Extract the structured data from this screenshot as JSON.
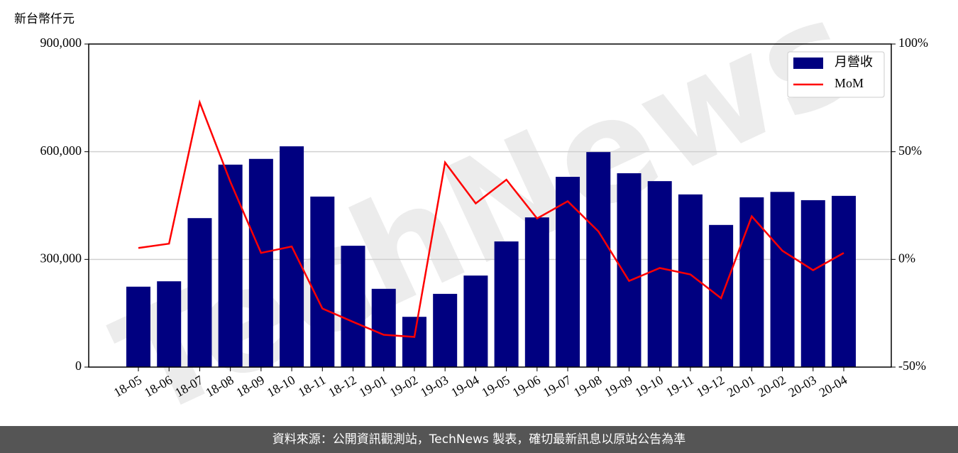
{
  "chart_data": {
    "type": "bar",
    "y_label": "新台幣仟元",
    "categories": [
      "18-05",
      "18-06",
      "18-07",
      "18-08",
      "18-09",
      "18-10",
      "18-11",
      "18-12",
      "19-01",
      "19-02",
      "19-03",
      "19-04",
      "19-05",
      "19-06",
      "19-07",
      "19-08",
      "19-09",
      "19-10",
      "19-11",
      "19-12",
      "20-01",
      "20-02",
      "20-03",
      "20-04"
    ],
    "series": [
      {
        "name": "月營收",
        "type": "bar",
        "color": "#000080",
        "values": [
          224000,
          239000,
          415000,
          564000,
          580000,
          615000,
          475000,
          338000,
          218000,
          140000,
          204000,
          255000,
          350000,
          417000,
          530000,
          599000,
          540000,
          518000,
          481000,
          396000,
          473000,
          488000,
          465000,
          477000
        ]
      },
      {
        "name": "MoM",
        "type": "line",
        "axis": "y2",
        "color": "#ff0000",
        "values": [
          5.3,
          7.3,
          72.9,
          36,
          3,
          6,
          -22.8,
          -29,
          -35,
          -36,
          45,
          26,
          37,
          19,
          27,
          13,
          -10,
          -4,
          -7,
          -18,
          20,
          4,
          -5,
          3
        ]
      }
    ],
    "ylim": [
      0,
      900000
    ],
    "yticks": [
      0,
      {
        "value": 300000,
        "label": "300,000"
      },
      {
        "value": 600000,
        "label": "600,000"
      },
      {
        "value": 900000,
        "label": "900,000"
      }
    ],
    "y2lim": [
      -50,
      100
    ],
    "y2ticks": [
      {
        "value": -50,
        "label": "-50%"
      },
      {
        "value": 0,
        "label": "0%"
      },
      {
        "value": 50,
        "label": "50%"
      },
      {
        "value": 100,
        "label": "100%"
      }
    ],
    "grid": true,
    "legend": "upper-right"
  },
  "watermark": "TechNews",
  "footer": "資料來源：公開資訊觀測站，TechNews 製表，確切最新訊息以原站公告為準"
}
